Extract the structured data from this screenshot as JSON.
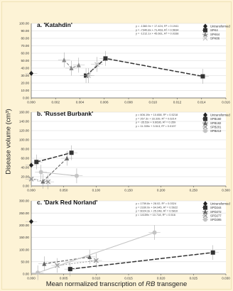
{
  "y_axis_label": "Disease volume (cm³)",
  "x_axis_label_pre": "Mean normalized transcription of ",
  "x_axis_label_em": "RB",
  "x_axis_label_post": " transgene",
  "chart_data": [
    {
      "type": "scatter",
      "panel": "a.",
      "title": "'Katahdin'",
      "ylim": [
        0,
        100
      ],
      "yticks": [
        "0.00",
        "10.00",
        "20.00",
        "30.00",
        "40.00",
        "50.00",
        "60.00",
        "70.00",
        "80.00",
        "90.00",
        "100.00"
      ],
      "xlim": [
        0,
        0.016
      ],
      "xticks": [
        "0.000",
        "0.002",
        "0.004",
        "0.006",
        "0.008",
        "0.010",
        "0.012",
        "0.014",
        "0.016"
      ],
      "equations": [
        "y = -1360.9x + 17.424, R² = 0.1941",
        "y = -7340.8x + 71.463, R² = 0.5634",
        "y = -1212.1x + 45.661, R² = 0.0338"
      ],
      "legend": [
        "Untransformed",
        "SPK4",
        "SPK64",
        "SPK86"
      ],
      "series": [
        {
          "name": "Untransformed",
          "marker": "diamond",
          "color": "#222222",
          "x": [
            0.0
          ],
          "y": [
            33
          ]
        },
        {
          "name": "SPK4",
          "marker": "square",
          "color": "#333333",
          "x": [
            0.0045,
            0.0061,
            0.0141
          ],
          "y": [
            30,
            53,
            29
          ]
        },
        {
          "name": "SPK64",
          "marker": "triangle",
          "color": "#8a8a8a",
          "x": [
            0.0027,
            0.0033,
            0.0039
          ],
          "y": [
            51,
            40,
            44
          ]
        },
        {
          "name": "SPK86",
          "marker": "x",
          "color": "#c4c4c4",
          "x": [
            0.0047,
            0.0054
          ],
          "y": [
            30,
            45
          ]
        }
      ]
    },
    {
      "type": "scatter",
      "panel": "b.",
      "title": "'Russet Burbank'",
      "ylim": [
        0,
        160
      ],
      "yticks": [
        "0.00",
        "20.00",
        "40.00",
        "60.00",
        "80.00",
        "100.00",
        "120.00",
        "140.00",
        "160.00"
      ],
      "xlim": [
        0,
        0.3
      ],
      "xticks": [
        "0.000",
        "0.050",
        "0.100",
        "0.150",
        "0.200",
        "0.250",
        "0.300"
      ],
      "equations": [
        "y = 606.19x + 10.658, R² = 0.5218",
        "y = 267.3x + 33.339, R² = 0.6214",
        "y = -35.53x + 9.6636, R² = 0.359",
        "y = 11.335x + 3.513, R² = 0.0197"
      ],
      "legend": [
        "Untransformed",
        "SPB160",
        "SPB182",
        "SPB201",
        "SPB213"
      ],
      "series": [
        {
          "name": "Untransformed",
          "marker": "diamond",
          "color": "#222222",
          "x": [
            0.0
          ],
          "y": [
            45
          ]
        },
        {
          "name": "SPB160",
          "marker": "square",
          "color": "#333333",
          "x": [
            0.008,
            0.062
          ],
          "y": [
            52,
            72
          ]
        },
        {
          "name": "SPB182",
          "marker": "triangle",
          "color": "#666666",
          "x": [
            0.018,
            0.055
          ],
          "y": [
            10,
            60
          ]
        },
        {
          "name": "SPB201",
          "marker": "x",
          "color": "#999999",
          "x": [
            0.0,
            0.026
          ],
          "y": [
            15,
            9
          ]
        },
        {
          "name": "SPB213",
          "marker": "circle",
          "color": "#c4c4c4",
          "x": [
            0.015,
            0.07
          ],
          "y": [
            30,
            22
          ]
        }
      ]
    },
    {
      "type": "scatter",
      "panel": "c.",
      "title": "'Dark Red Norland'",
      "ylim": [
        0,
        300
      ],
      "yticks": [
        "0.00",
        "50.00",
        "100.00",
        "150.00",
        "200.00",
        "250.00",
        "300.00"
      ],
      "xlim": [
        0,
        0.03
      ],
      "xticks": [
        "0.000",
        "0.005",
        "0.010",
        "0.015",
        "0.020",
        "0.025",
        "0.030"
      ],
      "equations": [
        "y = 1759.8x + 28.02, R² = 0.0324",
        "y = 2330.9x + 64.945, R² = 0.5622",
        "y = 6024.3x + 25.248, R² = 0.5810",
        "y = 14159x + 10.718, R² = 0.516"
      ],
      "legend": [
        "Untransformed",
        "SPD244",
        "SPD272",
        "SPD277",
        "SPD285"
      ],
      "series": [
        {
          "name": "Untransformed",
          "marker": "diamond",
          "color": "#222222",
          "x": [
            0.0
          ],
          "y": [
            215
          ]
        },
        {
          "name": "SPD244",
          "marker": "square",
          "color": "#333333",
          "x": [
            0.006,
            0.028
          ],
          "y": [
            20,
            88
          ]
        },
        {
          "name": "SPD272",
          "marker": "triangle",
          "color": "#666666",
          "x": [
            0.002,
            0.009
          ],
          "y": [
            42,
            70
          ]
        },
        {
          "name": "SPD277",
          "marker": "x",
          "color": "#999999",
          "x": [
            0.004,
            0.01
          ],
          "y": [
            35,
            55
          ]
        },
        {
          "name": "SPD285",
          "marker": "circle",
          "color": "#c4c4c4",
          "x": [
            0.001,
            0.019
          ],
          "y": [
            5,
            170
          ]
        }
      ]
    }
  ]
}
